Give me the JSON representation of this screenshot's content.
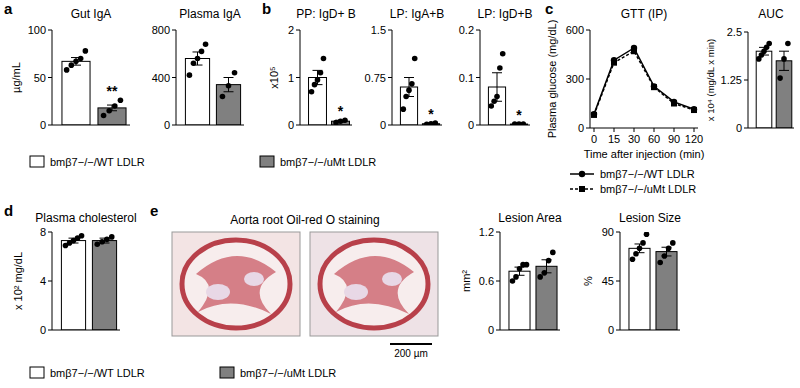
{
  "chart_data": [
    {
      "type": "bar",
      "title": "Gut IgA",
      "y_label": "µg/mL",
      "ylim": [
        0,
        100
      ],
      "yticks": [
        0,
        50,
        100
      ],
      "values": [
        67,
        18
      ],
      "errors": [
        4,
        3
      ],
      "colors": [
        "#ffffff",
        "#808080"
      ],
      "points": [
        [
          58,
          63,
          67,
          70,
          78
        ],
        [
          10,
          15,
          20,
          26
        ]
      ],
      "annotations": [
        null,
        "**"
      ]
    },
    {
      "type": "bar",
      "title": "Plasma IgA",
      "ylim": [
        0,
        800
      ],
      "yticks": [
        0,
        400,
        800
      ],
      "values": [
        560,
        340
      ],
      "errors": [
        55,
        60
      ],
      "colors": [
        "#ffffff",
        "#808080"
      ],
      "points": [
        [
          420,
          520,
          560,
          620,
          680
        ],
        [
          240,
          330,
          440
        ]
      ]
    },
    {
      "type": "bar",
      "title": "PP: IgD+ B",
      "y_label": "x10⁵",
      "ylim": [
        0,
        2
      ],
      "yticks": [
        0,
        1,
        2
      ],
      "values": [
        1.0,
        0.08
      ],
      "errors": [
        0.15,
        0.02
      ],
      "colors": [
        "#ffffff",
        "#808080"
      ],
      "points": [
        [
          0.7,
          0.85,
          0.95,
          1.1,
          1.4
        ],
        [
          0.05,
          0.08,
          0.1
        ]
      ],
      "annotations": [
        null,
        "*"
      ]
    },
    {
      "type": "bar",
      "title": "LP: IgA+B",
      "ylim": [
        0,
        1.5
      ],
      "yticks": [
        0,
        0.75,
        1.5
      ],
      "values": [
        0.6,
        0.02
      ],
      "errors": [
        0.15,
        0.01
      ],
      "colors": [
        "#ffffff",
        "#808080"
      ],
      "points": [
        [
          0.25,
          0.45,
          0.55,
          0.65,
          1.05
        ],
        [
          0.01,
          0.02,
          0.03
        ]
      ],
      "annotations": [
        null,
        "*"
      ]
    },
    {
      "type": "bar",
      "title": "LP: IgD+B",
      "ylim": [
        0,
        0.2
      ],
      "yticks": [
        0,
        0.1,
        0.2
      ],
      "values": [
        0.08,
        0.002
      ],
      "errors": [
        0.03,
        0.001
      ],
      "colors": [
        "#ffffff",
        "#808080"
      ],
      "points": [
        [
          0.04,
          0.05,
          0.06,
          0.12,
          0.15
        ],
        [
          0.002,
          0.002,
          0.002
        ]
      ],
      "annotations": [
        null,
        "*"
      ]
    },
    {
      "type": "line",
      "title": "GTT (IP)",
      "x_label": "Time after injection (min)",
      "y_label": "Plasma glucose (mg/dL)",
      "categories": [
        "0",
        "15",
        "30",
        "60",
        "90",
        "120"
      ],
      "ylim": [
        0,
        600
      ],
      "yticks": [
        0,
        300,
        600
      ],
      "legend": "bottom",
      "series": [
        {
          "name": "bmβ7−/−/WT LDLR",
          "color": "#000000",
          "marker": "circle",
          "line_style": "solid",
          "values": [
            85,
            415,
            490,
            255,
            160,
            115
          ]
        },
        {
          "name": "bmβ7−/−/uMt LDLR",
          "color": "#000000",
          "marker": "square",
          "line_style": "dashed",
          "values": [
            80,
            400,
            470,
            250,
            150,
            110
          ]
        }
      ]
    },
    {
      "type": "bar",
      "title": "AUC",
      "y_label": "x 10⁴ (mg/dL x min)",
      "ylim": [
        0,
        2.5
      ],
      "yticks": [
        0,
        1.25,
        2.5
      ],
      "values": [
        2.0,
        1.75
      ],
      "errors": [
        0.1,
        0.25
      ],
      "colors": [
        "#ffffff",
        "#808080"
      ],
      "points": [
        [
          1.8,
          1.9,
          2.0,
          2.1,
          2.2
        ],
        [
          1.3,
          1.8,
          2.2
        ]
      ]
    },
    {
      "type": "bar",
      "title": "Plasma cholesterol",
      "y_label": "x 10² mg/dL",
      "ylim": [
        0,
        8
      ],
      "yticks": [
        0,
        4,
        8
      ],
      "values": [
        7.3,
        7.3
      ],
      "errors": [
        0.2,
        0.2
      ],
      "colors": [
        "#ffffff",
        "#808080"
      ],
      "points": [
        [
          6.9,
          7.1,
          7.3,
          7.5,
          7.7
        ],
        [
          7.0,
          7.2,
          7.4,
          7.6
        ]
      ]
    },
    {
      "type": "bar",
      "title": "Lesion Area",
      "y_label": "mm²",
      "ylim": [
        0,
        1.2
      ],
      "yticks": [
        0,
        0.6,
        1.2
      ],
      "values": [
        0.72,
        0.78
      ],
      "errors": [
        0.05,
        0.08
      ],
      "colors": [
        "#ffffff",
        "#808080"
      ],
      "points": [
        [
          0.6,
          0.65,
          0.75,
          0.8,
          0.8
        ],
        [
          0.65,
          0.7,
          0.85,
          0.95
        ]
      ]
    },
    {
      "type": "bar",
      "title": "Lesion Size",
      "y_label": "%",
      "ylim": [
        0,
        90
      ],
      "yticks": [
        0,
        45,
        90
      ],
      "values": [
        75,
        72
      ],
      "errors": [
        4,
        4
      ],
      "colors": [
        "#ffffff",
        "#808080"
      ],
      "points": [
        [
          65,
          70,
          75,
          80,
          88
        ],
        [
          62,
          68,
          75,
          80
        ]
      ]
    }
  ],
  "panels": [
    "a",
    "b",
    "c",
    "d",
    "e"
  ],
  "image": {
    "title": "Aorta root Oil-red O staining",
    "scale_bar": "200 µm"
  },
  "legends": [
    {
      "items": [
        {
          "label": "bmβ7−/−/WT LDLR",
          "color": "#ffffff"
        },
        {
          "label": "bmβ7−/−/uMt LDLR",
          "color": "#808080"
        }
      ]
    },
    {
      "items": [
        {
          "label": "bmβ7−/−/WT LDLR",
          "color": "#ffffff"
        },
        {
          "label": "bmβ7−/−/uMt LDLR",
          "color": "#808080"
        }
      ]
    }
  ]
}
